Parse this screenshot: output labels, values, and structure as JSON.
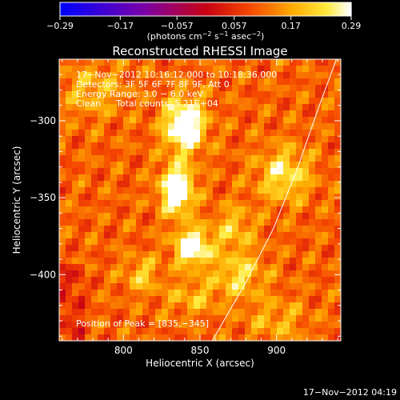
{
  "chart_data": {
    "type": "heatmap",
    "title": "Reconstructed RHESSI Image",
    "xlabel": "Heliocentric X (arcsec)",
    "ylabel": "Heliocentric Y (arcsec)",
    "xlim": [
      758,
      942
    ],
    "ylim": [
      -443,
      -260
    ],
    "x_ticks": [
      800,
      850,
      900
    ],
    "y_ticks": [
      -300,
      -350,
      -400
    ],
    "colorbar": {
      "range": [
        -0.29,
        0.29
      ],
      "tick_values": [
        -0.29,
        -0.17,
        -0.057,
        0.057,
        0.17,
        0.29
      ],
      "tick_labels": [
        "−0.29",
        "−0.17",
        "−0.057",
        "0.057",
        "0.17",
        "0.29"
      ],
      "unit_prefix": "(photons cm",
      "unit_exp1": "−2",
      "unit_mid": " s",
      "unit_exp2": "−1",
      "unit_mid2": " asec",
      "unit_exp3": "−2",
      "unit_suffix": ")"
    },
    "annotations": {
      "time_range": "17−Nov−2012 10:16:12.000 to 10:18:36.000",
      "detectors": "Detectors: 3F 5F 6F 7F 8F 9F, Att 0",
      "energy": "Energy Range: 3.0 − 6.0 keV",
      "method": "Clean",
      "total_counts": "Total counts: 5.21E+04",
      "peak": "Position of Peak = [835,−345]"
    },
    "peak": [
      835,
      -345
    ],
    "sources": [
      {
        "x": 835,
        "y": -345,
        "amp": 0.3,
        "sx": 7,
        "sy": 10
      },
      {
        "x": 840,
        "y": -303,
        "amp": 0.26,
        "sx": 9,
        "sy": 12
      },
      {
        "x": 845,
        "y": -382,
        "amp": 0.25,
        "sx": 8,
        "sy": 8
      },
      {
        "x": 905,
        "y": -335,
        "amp": 0.14,
        "sx": 12,
        "sy": 12
      },
      {
        "x": 812,
        "y": -400,
        "amp": 0.1,
        "sx": 8,
        "sy": 8
      },
      {
        "x": 872,
        "y": -370,
        "amp": 0.1,
        "sx": 9,
        "sy": 10
      },
      {
        "x": 875,
        "y": -400,
        "amp": 0.12,
        "sx": 12,
        "sy": 10
      },
      {
        "x": 845,
        "y": -415,
        "amp": 0.08,
        "sx": 12,
        "sy": 8
      },
      {
        "x": 780,
        "y": -280,
        "amp": 0.08,
        "sx": 15,
        "sy": 12
      },
      {
        "x": 900,
        "y": -430,
        "amp": 0.07,
        "sx": 14,
        "sy": 10
      }
    ],
    "background_level": 0.11,
    "limb_curve": [
      [
        858,
        -443
      ],
      [
        880,
        -405
      ],
      [
        898,
        -370
      ],
      [
        914,
        -330
      ],
      [
        928,
        -290
      ],
      [
        941,
        -255
      ]
    ],
    "colors": {
      "background": "#000000",
      "text": "#ffffff",
      "limb": "#ffffff"
    }
  },
  "footer": {
    "timestamp": "17−Nov−2012 04:19"
  }
}
